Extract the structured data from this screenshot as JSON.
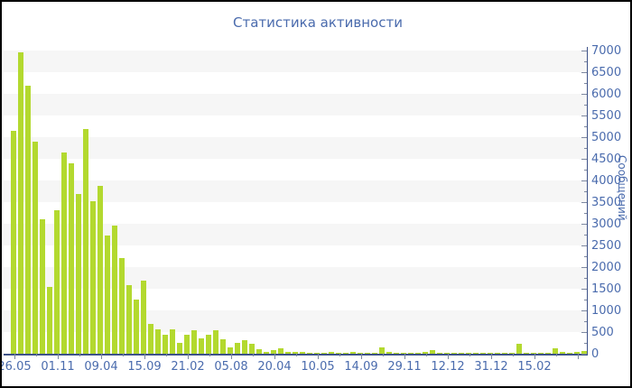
{
  "chart_data": {
    "type": "bar",
    "title": "Статистика активности",
    "ylabel": "Сообщений",
    "xlabel": "",
    "ylim": [
      0,
      7000
    ],
    "y_tick_step": 500,
    "y_minor_tick_step": 250,
    "y_tick_labels": [
      "0",
      "500",
      "1000",
      "1500",
      "2000",
      "2500",
      "3000",
      "3500",
      "4000",
      "4500",
      "5000",
      "5500",
      "6000",
      "6500",
      "7000"
    ],
    "x_tick_labels": [
      "26.05",
      "01.11",
      "09.04",
      "15.09",
      "21.02",
      "05.08",
      "20.04",
      "10.05",
      "14.09",
      "29.11",
      "12.12",
      "31.12",
      "15.02"
    ],
    "bars_per_xtick": 6,
    "grid": "striped-bands",
    "legend_position": "none",
    "values": [
      5150,
      6950,
      6180,
      4890,
      3100,
      1540,
      3310,
      4650,
      4390,
      3690,
      5190,
      3520,
      3870,
      2720,
      2960,
      2200,
      1590,
      1250,
      1690,
      690,
      560,
      430,
      570,
      250,
      430,
      545,
      360,
      430,
      545,
      335,
      150,
      250,
      315,
      230,
      100,
      45,
      85,
      130,
      40,
      40,
      35,
      30,
      25,
      30,
      40,
      30,
      25,
      35,
      30,
      25,
      30,
      155,
      35,
      30,
      25,
      30,
      25,
      35,
      90,
      25,
      20,
      25,
      20,
      25,
      20,
      15,
      20,
      25,
      20,
      15,
      230,
      30,
      25,
      20,
      15,
      130,
      40,
      20,
      35,
      55
    ]
  },
  "colors": {
    "bar": "#b3d92f",
    "text_blue": "#4a6bad",
    "axis": "#3d5288",
    "tick": "#7d88a0",
    "stripe": "#f6f6f6",
    "background": "#ffffff",
    "border": "#000000"
  }
}
